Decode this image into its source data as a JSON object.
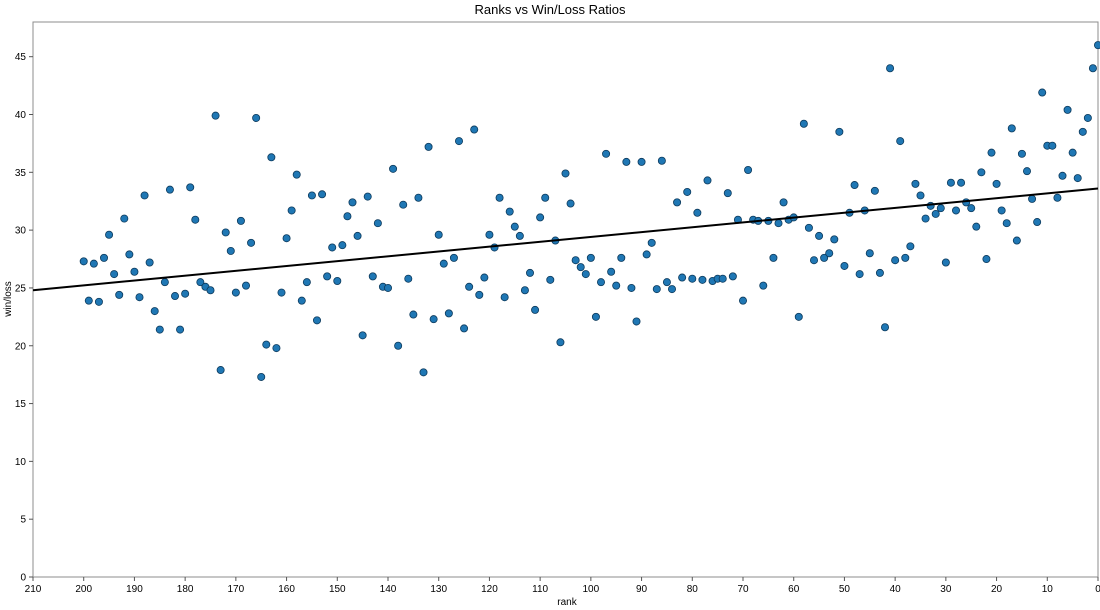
{
  "chart_data": {
    "type": "scatter",
    "title": "Ranks vs Win/Loss Ratios",
    "xlabel": "rank",
    "ylabel": "win/loss",
    "xlim": [
      210,
      0
    ],
    "ylim": [
      0,
      48
    ],
    "x_reversed": true,
    "xticks": [
      210,
      200,
      190,
      180,
      170,
      160,
      150,
      140,
      130,
      120,
      110,
      100,
      90,
      80,
      70,
      60,
      50,
      40,
      30,
      20,
      10,
      0
    ],
    "yticks": [
      0,
      5,
      10,
      15,
      20,
      25,
      30,
      35,
      40,
      45
    ],
    "grid": false,
    "marker_color": "#1f77b4",
    "trendline": {
      "x": [
        210,
        0
      ],
      "y": [
        24.8,
        33.6
      ],
      "color": "#000000"
    },
    "points": [
      [
        200,
        27.3
      ],
      [
        199,
        23.9
      ],
      [
        198,
        27.1
      ],
      [
        197,
        23.8
      ],
      [
        196,
        27.6
      ],
      [
        195,
        29.6
      ],
      [
        194,
        26.2
      ],
      [
        193,
        24.4
      ],
      [
        192,
        31.0
      ],
      [
        191,
        27.9
      ],
      [
        190,
        26.4
      ],
      [
        189,
        24.2
      ],
      [
        188,
        33.0
      ],
      [
        187,
        27.2
      ],
      [
        186,
        23.0
      ],
      [
        185,
        21.4
      ],
      [
        184,
        25.5
      ],
      [
        183,
        33.5
      ],
      [
        182,
        24.3
      ],
      [
        181,
        21.4
      ],
      [
        180,
        24.5
      ],
      [
        179,
        33.7
      ],
      [
        178,
        30.9
      ],
      [
        177,
        25.5
      ],
      [
        176,
        25.1
      ],
      [
        175,
        24.8
      ],
      [
        174,
        39.9
      ],
      [
        173,
        17.9
      ],
      [
        172,
        29.8
      ],
      [
        171,
        28.2
      ],
      [
        170,
        24.6
      ],
      [
        169,
        30.8
      ],
      [
        168,
        25.2
      ],
      [
        167,
        28.9
      ],
      [
        166,
        39.7
      ],
      [
        165,
        17.3
      ],
      [
        164,
        20.1
      ],
      [
        163,
        36.3
      ],
      [
        162,
        19.8
      ],
      [
        161,
        24.6
      ],
      [
        160,
        29.3
      ],
      [
        159,
        31.7
      ],
      [
        158,
        34.8
      ],
      [
        157,
        23.9
      ],
      [
        156,
        25.5
      ],
      [
        155,
        33.0
      ],
      [
        154,
        22.2
      ],
      [
        153,
        33.1
      ],
      [
        152,
        26.0
      ],
      [
        151,
        28.5
      ],
      [
        150,
        25.6
      ],
      [
        149,
        28.7
      ],
      [
        148,
        31.2
      ],
      [
        147,
        32.4
      ],
      [
        146,
        29.5
      ],
      [
        145,
        20.9
      ],
      [
        144,
        32.9
      ],
      [
        143,
        26.0
      ],
      [
        142,
        30.6
      ],
      [
        141,
        25.1
      ],
      [
        140,
        25.0
      ],
      [
        139,
        35.3
      ],
      [
        138,
        20.0
      ],
      [
        137,
        32.2
      ],
      [
        136,
        25.8
      ],
      [
        135,
        22.7
      ],
      [
        134,
        32.8
      ],
      [
        133,
        17.7
      ],
      [
        132,
        37.2
      ],
      [
        131,
        22.3
      ],
      [
        130,
        29.6
      ],
      [
        129,
        27.1
      ],
      [
        128,
        22.8
      ],
      [
        127,
        27.6
      ],
      [
        126,
        37.7
      ],
      [
        125,
        21.5
      ],
      [
        124,
        25.1
      ],
      [
        123,
        38.7
      ],
      [
        122,
        24.4
      ],
      [
        121,
        25.9
      ],
      [
        120,
        29.6
      ],
      [
        119,
        28.5
      ],
      [
        118,
        32.8
      ],
      [
        117,
        24.2
      ],
      [
        116,
        31.6
      ],
      [
        115,
        30.3
      ],
      [
        114,
        29.5
      ],
      [
        113,
        24.8
      ],
      [
        112,
        26.3
      ],
      [
        111,
        23.1
      ],
      [
        110,
        31.1
      ],
      [
        109,
        32.8
      ],
      [
        108,
        25.7
      ],
      [
        107,
        29.1
      ],
      [
        106,
        20.3
      ],
      [
        105,
        34.9
      ],
      [
        104,
        32.3
      ],
      [
        103,
        27.4
      ],
      [
        102,
        26.8
      ],
      [
        101,
        26.2
      ],
      [
        100,
        27.6
      ],
      [
        99,
        22.5
      ],
      [
        98,
        25.5
      ],
      [
        97,
        36.6
      ],
      [
        96,
        26.4
      ],
      [
        95,
        25.2
      ],
      [
        94,
        27.6
      ],
      [
        93,
        35.9
      ],
      [
        92,
        25.0
      ],
      [
        91,
        22.1
      ],
      [
        90,
        35.9
      ],
      [
        89,
        27.9
      ],
      [
        88,
        28.9
      ],
      [
        87,
        24.9
      ],
      [
        86,
        36.0
      ],
      [
        85,
        25.5
      ],
      [
        84,
        24.9
      ],
      [
        83,
        32.4
      ],
      [
        82,
        25.9
      ],
      [
        81,
        33.3
      ],
      [
        80,
        25.8
      ],
      [
        79,
        31.5
      ],
      [
        78,
        25.7
      ],
      [
        77,
        34.3
      ],
      [
        76,
        25.6
      ],
      [
        75,
        25.8
      ],
      [
        74,
        25.8
      ],
      [
        73,
        33.2
      ],
      [
        72,
        26.0
      ],
      [
        71,
        30.9
      ],
      [
        70,
        23.9
      ],
      [
        69,
        35.2
      ],
      [
        68,
        30.9
      ],
      [
        67,
        30.8
      ],
      [
        66,
        25.2
      ],
      [
        65,
        30.8
      ],
      [
        64,
        27.6
      ],
      [
        63,
        30.6
      ],
      [
        62,
        32.4
      ],
      [
        61,
        30.9
      ],
      [
        60,
        31.1
      ],
      [
        59,
        22.5
      ],
      [
        58,
        39.2
      ],
      [
        57,
        30.2
      ],
      [
        56,
        27.4
      ],
      [
        55,
        29.5
      ],
      [
        54,
        27.6
      ],
      [
        53,
        28.0
      ],
      [
        52,
        29.2
      ],
      [
        51,
        38.5
      ],
      [
        50,
        26.9
      ],
      [
        49,
        31.5
      ],
      [
        48,
        33.9
      ],
      [
        47,
        26.2
      ],
      [
        46,
        31.7
      ],
      [
        45,
        28.0
      ],
      [
        44,
        33.4
      ],
      [
        43,
        26.3
      ],
      [
        42,
        21.6
      ],
      [
        41,
        44.0
      ],
      [
        40,
        27.4
      ],
      [
        39,
        37.7
      ],
      [
        38,
        27.6
      ],
      [
        37,
        28.6
      ],
      [
        36,
        34.0
      ],
      [
        35,
        33.0
      ],
      [
        34,
        31.0
      ],
      [
        33,
        32.1
      ],
      [
        32,
        31.4
      ],
      [
        31,
        31.9
      ],
      [
        30,
        27.2
      ],
      [
        29,
        34.1
      ],
      [
        28,
        31.7
      ],
      [
        27,
        34.1
      ],
      [
        26,
        32.4
      ],
      [
        25,
        31.9
      ],
      [
        24,
        30.3
      ],
      [
        23,
        35.0
      ],
      [
        22,
        27.5
      ],
      [
        21,
        36.7
      ],
      [
        20,
        34.0
      ],
      [
        19,
        31.7
      ],
      [
        18,
        30.6
      ],
      [
        17,
        38.8
      ],
      [
        16,
        29.1
      ],
      [
        15,
        36.6
      ],
      [
        14,
        35.1
      ],
      [
        13,
        32.7
      ],
      [
        12,
        30.7
      ],
      [
        11,
        41.9
      ],
      [
        10,
        37.3
      ],
      [
        9,
        37.3
      ],
      [
        8,
        32.8
      ],
      [
        7,
        34.7
      ],
      [
        6,
        40.4
      ],
      [
        5,
        36.7
      ],
      [
        4,
        34.5
      ],
      [
        3,
        38.5
      ],
      [
        2,
        39.7
      ],
      [
        1,
        44.0
      ],
      [
        0,
        46.0
      ]
    ]
  }
}
